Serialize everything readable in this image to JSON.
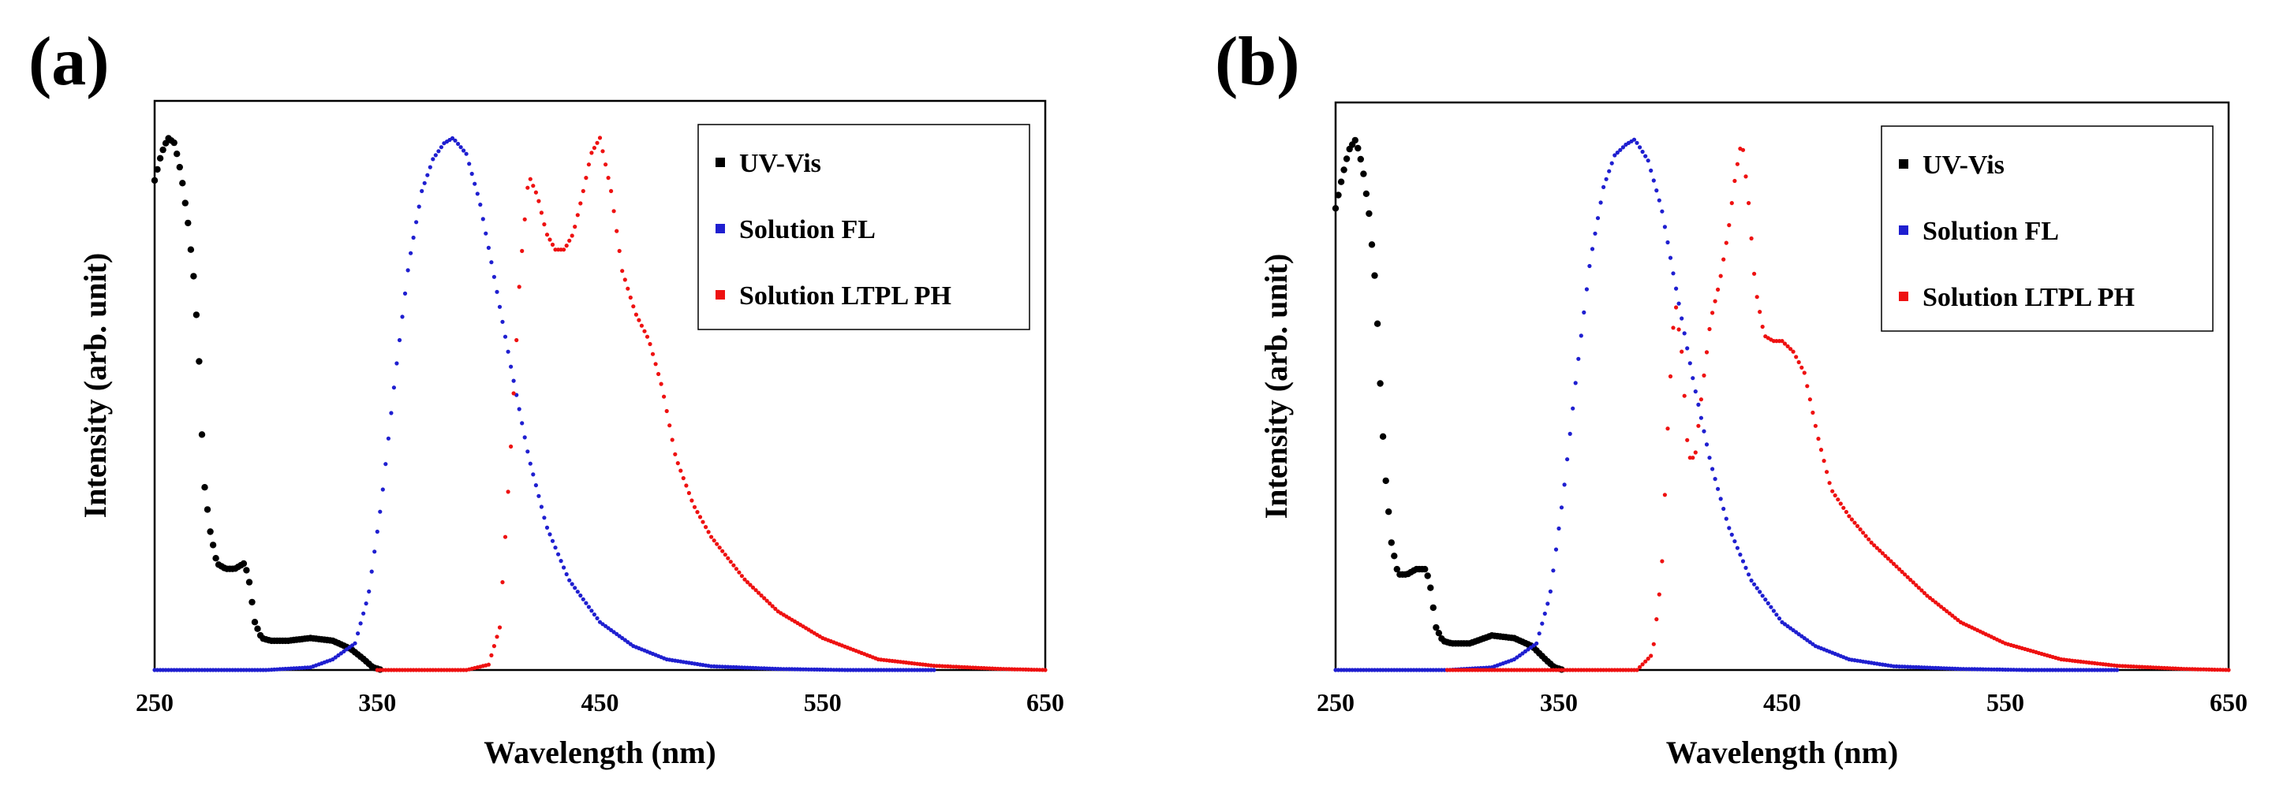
{
  "panels": [
    {
      "label": "(a)"
    },
    {
      "label": "(b)"
    }
  ],
  "colors": {
    "uv_vis": "#000000",
    "solution_fl": "#1f1fd0",
    "solution_ltpl_ph": "#ee1111"
  },
  "chart_data": [
    {
      "type": "scatter",
      "title": "",
      "xlabel": "Wavelength (nm)",
      "ylabel": "Intensity (arb. unit)",
      "xlim": [
        250,
        650
      ],
      "ylim": [
        0,
        1.0
      ],
      "xticks": [
        "250",
        "350",
        "450",
        "550",
        "650"
      ],
      "xtick_values": [
        250,
        350,
        450,
        550,
        650
      ],
      "legend": [
        "UV-Vis",
        "Solution FL",
        "Solution LTPL PH"
      ],
      "legend_position": "top-right",
      "series": [
        {
          "name": "UV-Vis",
          "x": [
            250,
            253,
            256,
            259,
            262,
            265,
            268,
            270,
            272,
            275,
            278,
            282,
            286,
            290,
            292,
            295,
            298,
            302,
            310,
            320,
            330,
            338,
            344,
            348,
            352
          ],
          "y": [
            0.92,
            0.97,
            1.0,
            0.99,
            0.93,
            0.84,
            0.72,
            0.58,
            0.36,
            0.26,
            0.2,
            0.19,
            0.19,
            0.2,
            0.18,
            0.09,
            0.06,
            0.055,
            0.055,
            0.06,
            0.055,
            0.04,
            0.02,
            0.005,
            0.0
          ]
        },
        {
          "name": "Solution FL",
          "x": [
            250,
            300,
            320,
            330,
            340,
            346,
            352,
            358,
            364,
            370,
            375,
            380,
            384,
            390,
            396,
            402,
            410,
            418,
            426,
            436,
            450,
            465,
            480,
            500,
            530,
            560,
            600
          ],
          "y": [
            0.0,
            0.0,
            0.005,
            0.02,
            0.05,
            0.14,
            0.32,
            0.55,
            0.76,
            0.9,
            0.96,
            0.99,
            1.0,
            0.97,
            0.88,
            0.75,
            0.57,
            0.4,
            0.27,
            0.17,
            0.09,
            0.045,
            0.02,
            0.007,
            0.002,
            0.0,
            0.0
          ]
        },
        {
          "name": "Solution LTPL PH",
          "x": [
            350,
            390,
            400,
            405,
            410,
            414,
            418,
            422,
            426,
            430,
            434,
            438,
            442,
            446,
            450,
            455,
            460,
            466,
            472,
            478,
            484,
            492,
            500,
            515,
            530,
            550,
            575,
            600,
            630,
            650
          ],
          "y": [
            0.0,
            0.0,
            0.01,
            0.08,
            0.42,
            0.74,
            0.93,
            0.89,
            0.82,
            0.79,
            0.79,
            0.82,
            0.89,
            0.97,
            1.0,
            0.9,
            0.75,
            0.67,
            0.62,
            0.53,
            0.4,
            0.31,
            0.25,
            0.17,
            0.11,
            0.06,
            0.02,
            0.008,
            0.002,
            0.0
          ]
        }
      ]
    },
    {
      "type": "scatter",
      "title": "",
      "xlabel": "Wavelength (nm)",
      "ylabel": "Intensity (arb. unit)",
      "xlim": [
        250,
        650
      ],
      "ylim": [
        0,
        1.0
      ],
      "xticks": [
        "250",
        "350",
        "450",
        "550",
        "650"
      ],
      "xtick_values": [
        250,
        350,
        450,
        550,
        650
      ],
      "legend": [
        "UV-Vis",
        "Solution FL",
        "Solution LTPL PH"
      ],
      "legend_position": "top-right",
      "series": [
        {
          "name": "UV-Vis",
          "x": [
            250,
            253,
            256,
            259,
            262,
            265,
            268,
            270,
            272,
            275,
            278,
            282,
            286,
            290,
            292,
            295,
            298,
            302,
            310,
            320,
            330,
            338,
            344,
            348,
            352
          ],
          "y": [
            0.87,
            0.93,
            0.98,
            1.0,
            0.95,
            0.86,
            0.72,
            0.54,
            0.38,
            0.24,
            0.18,
            0.18,
            0.19,
            0.19,
            0.17,
            0.08,
            0.055,
            0.05,
            0.05,
            0.065,
            0.06,
            0.045,
            0.02,
            0.005,
            0.0
          ]
        },
        {
          "name": "Solution FL",
          "x": [
            250,
            300,
            320,
            330,
            340,
            346,
            352,
            358,
            364,
            370,
            375,
            380,
            384,
            390,
            396,
            402,
            410,
            418,
            426,
            436,
            450,
            465,
            480,
            500,
            530,
            560,
            600
          ],
          "y": [
            0.0,
            0.0,
            0.005,
            0.02,
            0.05,
            0.14,
            0.33,
            0.56,
            0.77,
            0.91,
            0.97,
            0.99,
            1.0,
            0.96,
            0.87,
            0.73,
            0.55,
            0.39,
            0.27,
            0.17,
            0.09,
            0.045,
            0.02,
            0.007,
            0.002,
            0.0,
            0.0
          ]
        },
        {
          "name": "Solution LTPL PH",
          "x": [
            300,
            385,
            392,
            396,
            399,
            402,
            405,
            408,
            411,
            414,
            418,
            422,
            426,
            429,
            432,
            435,
            438,
            442,
            446,
            450,
            455,
            460,
            466,
            472,
            480,
            490,
            500,
            515,
            530,
            550,
            575,
            600,
            630,
            650
          ],
          "y": [
            0.0,
            0.0,
            0.03,
            0.18,
            0.48,
            0.7,
            0.6,
            0.4,
            0.4,
            0.52,
            0.66,
            0.73,
            0.83,
            0.93,
            1.0,
            0.88,
            0.72,
            0.63,
            0.62,
            0.62,
            0.6,
            0.56,
            0.44,
            0.34,
            0.29,
            0.24,
            0.2,
            0.14,
            0.09,
            0.05,
            0.02,
            0.008,
            0.002,
            0.0
          ]
        }
      ]
    }
  ]
}
